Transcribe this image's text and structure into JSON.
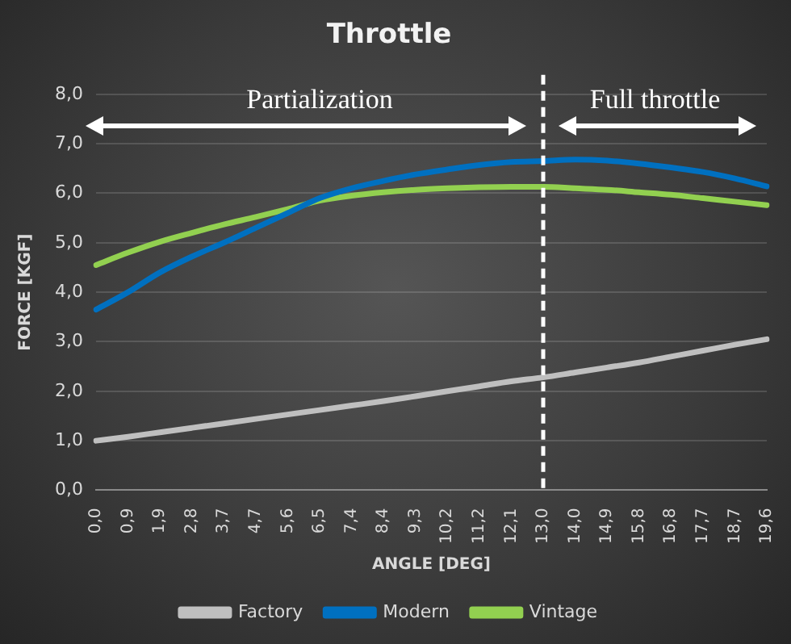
{
  "chart_data": {
    "type": "line",
    "title": "Throttle",
    "xlabel": "ANGLE [DEG]",
    "ylabel": "FORCE [KGF]",
    "categories": [
      "0,0",
      "0,9",
      "1,9",
      "2,8",
      "3,7",
      "4,7",
      "5,6",
      "6,5",
      "7,4",
      "8,4",
      "9,3",
      "10,2",
      "11,2",
      "12,1",
      "13,0",
      "14,0",
      "14,9",
      "15,8",
      "16,8",
      "17,7",
      "18,7",
      "19,6"
    ],
    "series": [
      {
        "name": "Factory",
        "color": "#bfbfbf",
        "values": [
          1.0,
          1.08,
          1.17,
          1.26,
          1.35,
          1.44,
          1.53,
          1.62,
          1.71,
          1.8,
          1.9,
          2.0,
          2.1,
          2.2,
          2.28,
          2.38,
          2.48,
          2.58,
          2.7,
          2.82,
          2.94,
          3.05
        ]
      },
      {
        "name": "Modern",
        "color": "#0070c0",
        "values": [
          3.65,
          4.0,
          4.4,
          4.72,
          5.0,
          5.3,
          5.6,
          5.9,
          6.1,
          6.25,
          6.38,
          6.48,
          6.57,
          6.63,
          6.65,
          6.68,
          6.66,
          6.6,
          6.52,
          6.43,
          6.3,
          6.14
        ]
      },
      {
        "name": "Vintage",
        "color": "#92d050",
        "values": [
          4.55,
          4.8,
          5.02,
          5.2,
          5.37,
          5.52,
          5.68,
          5.85,
          5.95,
          6.02,
          6.07,
          6.1,
          6.12,
          6.13,
          6.13,
          6.1,
          6.07,
          6.02,
          5.97,
          5.9,
          5.83,
          5.76
        ]
      }
    ],
    "ylim": [
      0,
      8
    ],
    "yticks": [
      {
        "value": 0,
        "label": "0,0"
      },
      {
        "value": 1,
        "label": "1,0"
      },
      {
        "value": 2,
        "label": "2,0"
      },
      {
        "value": 3,
        "label": "3,0"
      },
      {
        "value": 4,
        "label": "4,0"
      },
      {
        "value": 5,
        "label": "5,0"
      },
      {
        "value": 6,
        "label": "6,0"
      },
      {
        "value": 7,
        "label": "7,0"
      },
      {
        "value": 8,
        "label": "8,0"
      }
    ],
    "ref_lines": [
      {
        "axis": "x",
        "value": "13,0",
        "color": "#ffffff",
        "line_style": "dashed"
      }
    ],
    "annotations": [
      "Partialization",
      "Full throttle"
    ],
    "grid": "y",
    "legend": "bottom",
    "marker": "none",
    "line_style": "solid"
  }
}
